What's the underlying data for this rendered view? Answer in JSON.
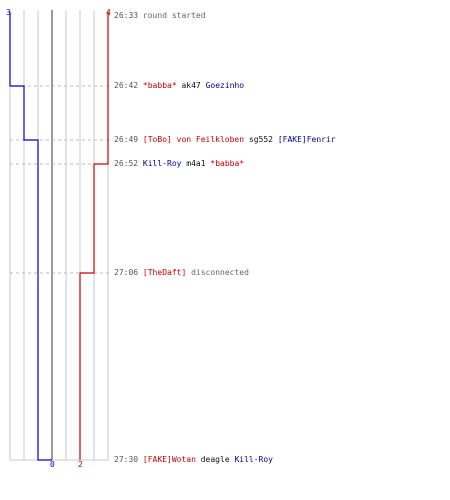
{
  "colors": {
    "red_team": "#cc0000",
    "blue_team": "#0000cc",
    "grid": "#c8c8c8",
    "separator": "#999999",
    "dashed": "#bbbbbb",
    "text": "#555555"
  },
  "scores": {
    "blue_start": "3",
    "red_start": "4",
    "blue_end": "0",
    "red_end": "2"
  },
  "events": [
    {
      "time": "26:33",
      "type": "info",
      "message": "round started"
    },
    {
      "time": "26:42",
      "type": "kill",
      "killer": "*babba*",
      "killer_team": "red",
      "weapon": "ak47",
      "victim": "Goezinho",
      "victim_team": "blue"
    },
    {
      "time": "26:49",
      "type": "kill",
      "killer": "[ToBo] von Feilkloben",
      "killer_team": "red",
      "weapon": "sg552",
      "victim": "[FAKE]Fenrir",
      "victim_team": "blue"
    },
    {
      "time": "26:52",
      "type": "kill",
      "killer": "Kill-Roy",
      "killer_team": "blue",
      "weapon": "m4a1",
      "victim": "*babba*",
      "victim_team": "red"
    },
    {
      "time": "27:06",
      "type": "leave",
      "player": "[TheDaft]",
      "player_team": "red",
      "message": "disconnected"
    },
    {
      "time": "27:30",
      "type": "kill",
      "killer": "[FAKE]Wotan",
      "killer_team": "red",
      "weapon": "deagle",
      "victim": "Kill-Roy",
      "victim_team": "blue"
    }
  ]
}
